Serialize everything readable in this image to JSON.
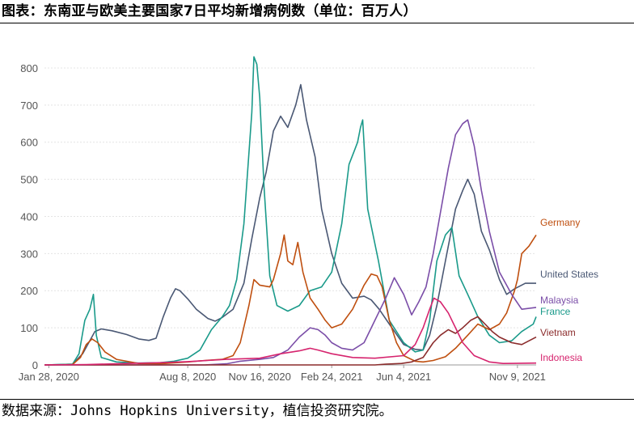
{
  "title": "图表：东南亚与欧美主要国家7日平均新增病例数（单位：百万人）",
  "source": "数据来源：Johns Hopkins University，植信投资研究院。",
  "chart_data": {
    "type": "line",
    "title": "图表：东南亚与欧美主要国家7日平均新增病例数（单位：百万人）",
    "xlabel": "",
    "ylabel": "",
    "ylim": [
      0,
      850
    ],
    "yticks": [
      0,
      100,
      200,
      300,
      400,
      500,
      600,
      700,
      800
    ],
    "x_range": [
      "2020-01-22",
      "2021-12-05"
    ],
    "xticks": [
      {
        "date": "2020-01-28",
        "label": "Jan 28, 2020"
      },
      {
        "date": "2020-08-08",
        "label": "Aug 8, 2020"
      },
      {
        "date": "2020-11-16",
        "label": "Nov 16, 2020"
      },
      {
        "date": "2021-02-24",
        "label": "Feb 24, 2021"
      },
      {
        "date": "2021-06-04",
        "label": "Jun 4, 2021"
      },
      {
        "date": "2021-11-09",
        "label": "Nov 9, 2021"
      }
    ],
    "grid": "horizontal",
    "legend": "direct labels at right end of lines",
    "series": [
      {
        "name": "United States",
        "color": "#4a5874",
        "end_value": 220,
        "points": [
          [
            "2020-01-22",
            0
          ],
          [
            "2020-03-01",
            2
          ],
          [
            "2020-03-15",
            30
          ],
          [
            "2020-04-01",
            90
          ],
          [
            "2020-04-10",
            97
          ],
          [
            "2020-04-25",
            92
          ],
          [
            "2020-05-15",
            82
          ],
          [
            "2020-06-01",
            70
          ],
          [
            "2020-06-15",
            66
          ],
          [
            "2020-06-25",
            72
          ],
          [
            "2020-07-05",
            130
          ],
          [
            "2020-07-15",
            180
          ],
          [
            "2020-07-22",
            205
          ],
          [
            "2020-07-28",
            200
          ],
          [
            "2020-08-08",
            178
          ],
          [
            "2020-08-20",
            150
          ],
          [
            "2020-09-05",
            125
          ],
          [
            "2020-09-15",
            118
          ],
          [
            "2020-09-25",
            128
          ],
          [
            "2020-10-10",
            150
          ],
          [
            "2020-10-25",
            220
          ],
          [
            "2020-11-05",
            340
          ],
          [
            "2020-11-16",
            450
          ],
          [
            "2020-11-25",
            520
          ],
          [
            "2020-12-05",
            630
          ],
          [
            "2020-12-15",
            670
          ],
          [
            "2020-12-25",
            640
          ],
          [
            "2021-01-05",
            700
          ],
          [
            "2021-01-12",
            755
          ],
          [
            "2021-01-20",
            660
          ],
          [
            "2021-02-01",
            560
          ],
          [
            "2021-02-10",
            420
          ],
          [
            "2021-02-24",
            300
          ],
          [
            "2021-03-10",
            220
          ],
          [
            "2021-03-25",
            180
          ],
          [
            "2021-04-10",
            185
          ],
          [
            "2021-04-20",
            175
          ],
          [
            "2021-05-01",
            150
          ],
          [
            "2021-05-15",
            110
          ],
          [
            "2021-06-04",
            55
          ],
          [
            "2021-06-20",
            42
          ],
          [
            "2021-07-01",
            40
          ],
          [
            "2021-07-10",
            80
          ],
          [
            "2021-07-20",
            160
          ],
          [
            "2021-08-01",
            280
          ],
          [
            "2021-08-15",
            420
          ],
          [
            "2021-08-25",
            470
          ],
          [
            "2021-09-01",
            500
          ],
          [
            "2021-09-10",
            460
          ],
          [
            "2021-09-20",
            360
          ],
          [
            "2021-10-01",
            310
          ],
          [
            "2021-10-15",
            230
          ],
          [
            "2021-10-25",
            190
          ],
          [
            "2021-11-05",
            205
          ],
          [
            "2021-11-20",
            220
          ],
          [
            "2021-12-05",
            220
          ]
        ]
      },
      {
        "name": "France",
        "color": "#1a9a8a",
        "end_value": 130,
        "points": [
          [
            "2020-01-22",
            0
          ],
          [
            "2020-03-01",
            2
          ],
          [
            "2020-03-10",
            30
          ],
          [
            "2020-03-18",
            120
          ],
          [
            "2020-03-25",
            150
          ],
          [
            "2020-03-30",
            190
          ],
          [
            "2020-04-03",
            80
          ],
          [
            "2020-04-10",
            20
          ],
          [
            "2020-05-01",
            8
          ],
          [
            "2020-06-01",
            5
          ],
          [
            "2020-07-01",
            6
          ],
          [
            "2020-07-20",
            10
          ],
          [
            "2020-08-08",
            18
          ],
          [
            "2020-08-25",
            40
          ],
          [
            "2020-09-10",
            95
          ],
          [
            "2020-09-25",
            130
          ],
          [
            "2020-10-05",
            160
          ],
          [
            "2020-10-15",
            230
          ],
          [
            "2020-10-25",
            380
          ],
          [
            "2020-11-05",
            680
          ],
          [
            "2020-11-08",
            830
          ],
          [
            "2020-11-12",
            810
          ],
          [
            "2020-11-16",
            720
          ],
          [
            "2020-11-22",
            480
          ],
          [
            "2020-11-30",
            240
          ],
          [
            "2020-12-10",
            160
          ],
          [
            "2020-12-25",
            145
          ],
          [
            "2021-01-10",
            160
          ],
          [
            "2021-01-25",
            200
          ],
          [
            "2021-02-10",
            210
          ],
          [
            "2021-02-24",
            250
          ],
          [
            "2021-03-10",
            380
          ],
          [
            "2021-03-20",
            540
          ],
          [
            "2021-03-28",
            580
          ],
          [
            "2021-04-01",
            600
          ],
          [
            "2021-04-05",
            640
          ],
          [
            "2021-04-08",
            660
          ],
          [
            "2021-04-15",
            420
          ],
          [
            "2021-04-30",
            280
          ],
          [
            "2021-05-15",
            120
          ],
          [
            "2021-06-04",
            60
          ],
          [
            "2021-06-20",
            35
          ],
          [
            "2021-07-01",
            40
          ],
          [
            "2021-07-10",
            120
          ],
          [
            "2021-07-20",
            280
          ],
          [
            "2021-08-01",
            350
          ],
          [
            "2021-08-10",
            370
          ],
          [
            "2021-08-20",
            240
          ],
          [
            "2021-09-01",
            190
          ],
          [
            "2021-09-15",
            130
          ],
          [
            "2021-10-01",
            80
          ],
          [
            "2021-10-15",
            60
          ],
          [
            "2021-11-01",
            65
          ],
          [
            "2021-11-15",
            90
          ],
          [
            "2021-12-01",
            110
          ],
          [
            "2021-12-05",
            130
          ]
        ]
      },
      {
        "name": "Germany",
        "color": "#bf4f0f",
        "end_value": 350,
        "points": [
          [
            "2020-01-22",
            0
          ],
          [
            "2020-03-01",
            1
          ],
          [
            "2020-03-12",
            20
          ],
          [
            "2020-03-20",
            55
          ],
          [
            "2020-03-28",
            70
          ],
          [
            "2020-04-05",
            60
          ],
          [
            "2020-04-15",
            35
          ],
          [
            "2020-05-01",
            15
          ],
          [
            "2020-06-01",
            4
          ],
          [
            "2020-07-01",
            3
          ],
          [
            "2020-08-08",
            8
          ],
          [
            "2020-09-01",
            12
          ],
          [
            "2020-09-25",
            15
          ],
          [
            "2020-10-10",
            25
          ],
          [
            "2020-10-20",
            60
          ],
          [
            "2020-11-01",
            160
          ],
          [
            "2020-11-08",
            230
          ],
          [
            "2020-11-16",
            215
          ],
          [
            "2020-11-30",
            210
          ],
          [
            "2020-12-05",
            230
          ],
          [
            "2020-12-15",
            300
          ],
          [
            "2020-12-20",
            350
          ],
          [
            "2020-12-25",
            280
          ],
          [
            "2021-01-01",
            270
          ],
          [
            "2021-01-08",
            330
          ],
          [
            "2021-01-15",
            250
          ],
          [
            "2021-01-25",
            180
          ],
          [
            "2021-02-05",
            150
          ],
          [
            "2021-02-15",
            120
          ],
          [
            "2021-02-24",
            100
          ],
          [
            "2021-03-10",
            110
          ],
          [
            "2021-03-25",
            150
          ],
          [
            "2021-04-10",
            215
          ],
          [
            "2021-04-20",
            245
          ],
          [
            "2021-04-28",
            240
          ],
          [
            "2021-05-05",
            210
          ],
          [
            "2021-05-15",
            120
          ],
          [
            "2021-05-25",
            60
          ],
          [
            "2021-06-04",
            25
          ],
          [
            "2021-06-20",
            10
          ],
          [
            "2021-07-01",
            8
          ],
          [
            "2021-07-15",
            12
          ],
          [
            "2021-08-01",
            22
          ],
          [
            "2021-08-15",
            45
          ],
          [
            "2021-09-01",
            80
          ],
          [
            "2021-09-15",
            110
          ],
          [
            "2021-10-01",
            95
          ],
          [
            "2021-10-15",
            110
          ],
          [
            "2021-10-25",
            140
          ],
          [
            "2021-11-05",
            200
          ],
          [
            "2021-11-09",
            230
          ],
          [
            "2021-11-15",
            300
          ],
          [
            "2021-11-25",
            320
          ],
          [
            "2021-12-05",
            350
          ]
        ]
      },
      {
        "name": "Malaysia",
        "color": "#7b4ea8",
        "end_value": 155,
        "points": [
          [
            "2020-01-22",
            0
          ],
          [
            "2020-09-01",
            0
          ],
          [
            "2020-10-01",
            3
          ],
          [
            "2020-10-20",
            10
          ],
          [
            "2020-11-16",
            15
          ],
          [
            "2020-12-05",
            20
          ],
          [
            "2020-12-25",
            40
          ],
          [
            "2021-01-10",
            75
          ],
          [
            "2021-01-25",
            100
          ],
          [
            "2021-02-05",
            95
          ],
          [
            "2021-02-15",
            80
          ],
          [
            "2021-02-24",
            60
          ],
          [
            "2021-03-10",
            45
          ],
          [
            "2021-03-25",
            40
          ],
          [
            "2021-04-10",
            60
          ],
          [
            "2021-04-25",
            120
          ],
          [
            "2021-05-10",
            180
          ],
          [
            "2021-05-22",
            235
          ],
          [
            "2021-06-04",
            190
          ],
          [
            "2021-06-15",
            135
          ],
          [
            "2021-06-25",
            170
          ],
          [
            "2021-07-05",
            210
          ],
          [
            "2021-07-15",
            300
          ],
          [
            "2021-07-25",
            410
          ],
          [
            "2021-08-05",
            530
          ],
          [
            "2021-08-15",
            620
          ],
          [
            "2021-08-25",
            650
          ],
          [
            "2021-09-01",
            660
          ],
          [
            "2021-09-10",
            590
          ],
          [
            "2021-09-20",
            470
          ],
          [
            "2021-10-01",
            360
          ],
          [
            "2021-10-15",
            250
          ],
          [
            "2021-11-01",
            190
          ],
          [
            "2021-11-15",
            150
          ],
          [
            "2021-12-05",
            155
          ]
        ]
      },
      {
        "name": "Vietnam",
        "color": "#8b2c2c",
        "end_value": 75,
        "points": [
          [
            "2020-01-22",
            0
          ],
          [
            "2021-04-25",
            0
          ],
          [
            "2021-05-10",
            2
          ],
          [
            "2021-06-01",
            4
          ],
          [
            "2021-06-15",
            8
          ],
          [
            "2021-07-01",
            20
          ],
          [
            "2021-07-15",
            60
          ],
          [
            "2021-07-25",
            80
          ],
          [
            "2021-08-05",
            95
          ],
          [
            "2021-08-15",
            85
          ],
          [
            "2021-08-25",
            100
          ],
          [
            "2021-09-05",
            120
          ],
          [
            "2021-09-15",
            130
          ],
          [
            "2021-09-25",
            110
          ],
          [
            "2021-10-05",
            90
          ],
          [
            "2021-10-15",
            75
          ],
          [
            "2021-11-01",
            60
          ],
          [
            "2021-11-15",
            55
          ],
          [
            "2021-12-05",
            75
          ]
        ]
      },
      {
        "name": "Indonesia",
        "color": "#d6246e",
        "end_value": 5,
        "points": [
          [
            "2020-01-22",
            0
          ],
          [
            "2020-03-20",
            1
          ],
          [
            "2020-05-01",
            3
          ],
          [
            "2020-07-01",
            6
          ],
          [
            "2020-08-08",
            9
          ],
          [
            "2020-10-01",
            15
          ],
          [
            "2020-11-16",
            18
          ],
          [
            "2020-12-15",
            30
          ],
          [
            "2021-01-10",
            38
          ],
          [
            "2021-01-25",
            45
          ],
          [
            "2021-02-05",
            40
          ],
          [
            "2021-02-24",
            30
          ],
          [
            "2021-03-25",
            20
          ],
          [
            "2021-04-25",
            18
          ],
          [
            "2021-06-04",
            25
          ],
          [
            "2021-06-20",
            55
          ],
          [
            "2021-07-01",
            100
          ],
          [
            "2021-07-10",
            150
          ],
          [
            "2021-07-16",
            180
          ],
          [
            "2021-07-25",
            170
          ],
          [
            "2021-08-05",
            140
          ],
          [
            "2021-08-15",
            100
          ],
          [
            "2021-08-25",
            60
          ],
          [
            "2021-09-10",
            25
          ],
          [
            "2021-10-01",
            8
          ],
          [
            "2021-10-20",
            4
          ],
          [
            "2021-12-05",
            5
          ]
        ]
      }
    ]
  }
}
